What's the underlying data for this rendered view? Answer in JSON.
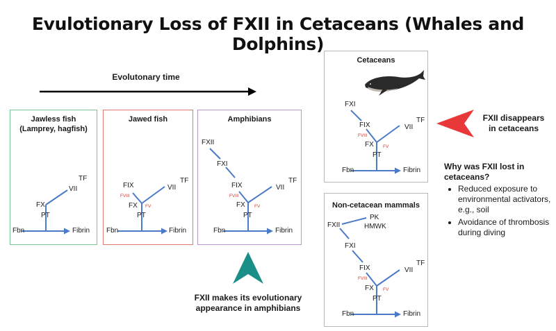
{
  "title": "Evulotionary Loss of FXII in Cetaceans (Whales and Dolphins)",
  "timeline": {
    "label": "Evolutonary time"
  },
  "panels": {
    "jawless": {
      "title_line1": "Jawless fish",
      "title_line2": "(Lamprey, hagfish)",
      "labels": {
        "tf": "TF",
        "vii": "VII",
        "fx": "FX",
        "pt": "PT",
        "fbn": "Fbn",
        "fibrin": "Fibrin"
      }
    },
    "jawed": {
      "title": "Jawed fish",
      "labels": {
        "fix": "FIX",
        "fviii": "FVIII",
        "tf": "TF",
        "vii": "VII",
        "fx": "FX",
        "fv": "FV",
        "pt": "PT",
        "fbn": "Fbn",
        "fibrin": "Fibrin"
      }
    },
    "amphibians": {
      "title": "Amphibians",
      "labels": {
        "fxii": "FXII",
        "fxi": "FXI",
        "fix": "FIX",
        "fviii": "FVIII",
        "tf": "TF",
        "vii": "VII",
        "fx": "FX",
        "fv": "FV",
        "pt": "PT",
        "fbn": "Fbn",
        "fibrin": "Fibrin"
      }
    },
    "cetaceans": {
      "title": "Cetaceans",
      "labels": {
        "fxi": "FXI",
        "fix": "FIX",
        "fviii": "FVIII",
        "tf": "TF",
        "vii": "VII",
        "fx": "FX",
        "fv": "FV",
        "pt": "PT",
        "fbn": "Fbn",
        "fibrin": "Fibrin"
      }
    },
    "noncetacean": {
      "title": "Non-cetacean mammals",
      "labels": {
        "fxii": "FXII",
        "pk": "PK",
        "hmwk": "HMWK",
        "fxi": "FXI",
        "fix": "FIX",
        "fviii": "FVIII",
        "tf": "TF",
        "vii": "VII",
        "fx": "FX",
        "fv": "FV",
        "pt": "PT",
        "fbn": "Fbn",
        "fibrin": "Fibrin"
      }
    }
  },
  "callouts": {
    "appearance_line1": "FXII makes its evolutionary",
    "appearance_line2": "appearance in amphibians",
    "disappear_line1": "FXII disappears",
    "disappear_line2": "in cetaceans"
  },
  "why": {
    "heading_line1": "Why was FXII lost in",
    "heading_line2": "cetaceans?",
    "bullets": [
      "Reduced exposure to environmental activators, e.g., soil",
      "Avoidance of thrombosis during diving"
    ]
  },
  "colors": {
    "arrow_blue": "#4a7ac8",
    "jawless_border": "#7cc59a",
    "jawed_border": "#e07a6e",
    "amphibians_border": "#b497cf",
    "mammal_border": "#b8b8b8",
    "teal_arrowhead": "#1a8f88",
    "red_arrowhead": "#e8383a",
    "minor_factor_red": "#d93b30"
  }
}
